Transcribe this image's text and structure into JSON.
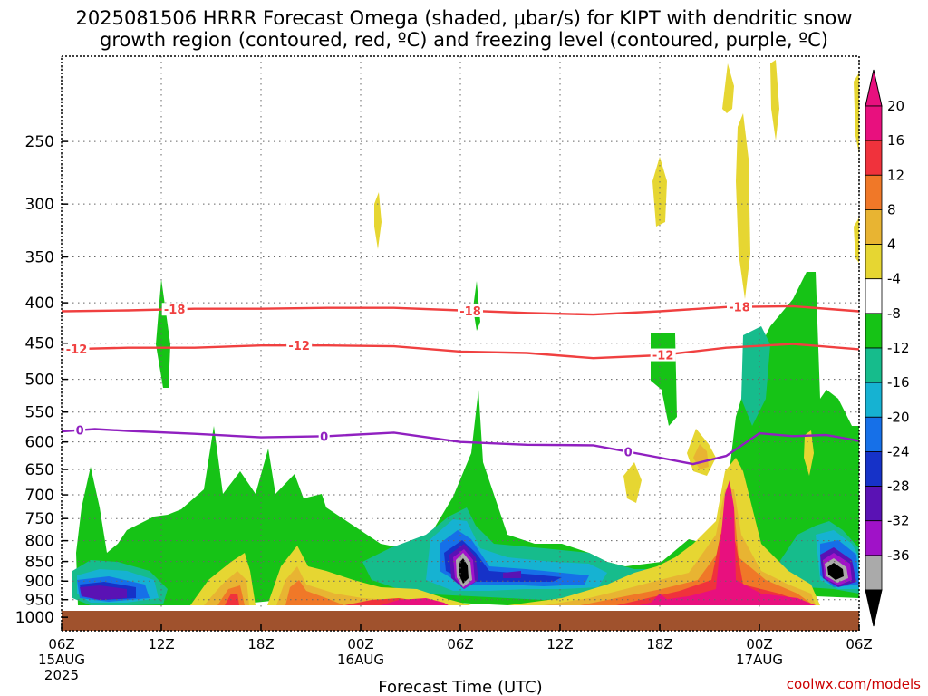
{
  "chart_data": {
    "type": "heatmap",
    "title": "2025081506 HRRR Forecast Omega (shaded, μbar/s) for KIPT with dendritic snow growth region (contoured, red, ºC) and freezing level (contoured, purple, ºC)",
    "title_lines": [
      "2025081506 HRRR Forecast Omega (shaded, μbar/s) for KIPT with dendritic snow",
      "growth region (contoured, red, ºC) and freezing level (contoured, purple, ºC)"
    ],
    "xlabel": "Forecast Time (UTC)",
    "ylabel": "",
    "y_scale": "log-pressure",
    "ylim": [
      1040,
      195
    ],
    "xlim_hours": [
      0,
      48
    ],
    "grid": true,
    "y_ticks": [
      "250",
      "300",
      "350",
      "400",
      "450",
      "500",
      "550",
      "600",
      "650",
      "700",
      "750",
      "800",
      "850",
      "900",
      "950",
      "1000"
    ],
    "x_ticks": [
      {
        "hour": 0,
        "label": "06Z",
        "date": "15AUG",
        "year": "2025"
      },
      {
        "hour": 6,
        "label": "12Z"
      },
      {
        "hour": 12,
        "label": "18Z"
      },
      {
        "hour": 18,
        "label": "00Z",
        "date": "16AUG"
      },
      {
        "hour": 24,
        "label": "06Z"
      },
      {
        "hour": 30,
        "label": "12Z"
      },
      {
        "hour": 36,
        "label": "18Z"
      },
      {
        "hour": 42,
        "label": "00Z",
        "date": "17AUG"
      },
      {
        "hour": 48,
        "label": "06Z"
      }
    ],
    "colorbar": {
      "labels": [
        "20",
        "16",
        "12",
        "8",
        "4",
        "-4",
        "-8",
        "-12",
        "-16",
        "-20",
        "-24",
        "-28",
        "-32",
        "-36"
      ],
      "colors": [
        "#e8107e",
        "#f0323c",
        "#f07828",
        "#e8b432",
        "#e6d632",
        "#ffffff",
        "#16c316",
        "#16bc8c",
        "#16b2d2",
        "#1670e8",
        "#1632c8",
        "#5a12b4",
        "#a012c8",
        "#aaaaaa"
      ],
      "top_arrow_color": "#e8107e",
      "bottom_arrow_color": "#000000"
    },
    "series": [
      {
        "name": "-18",
        "color": "#f04040",
        "x": [
          0,
          4,
          8,
          12,
          16,
          20,
          24,
          28,
          32,
          36,
          40,
          44,
          48
        ],
        "y": [
          410,
          409,
          407,
          407,
          406,
          406,
          409,
          412,
          414,
          410,
          405,
          404,
          410
        ]
      },
      {
        "name": "-12",
        "color": "#f04040",
        "x": [
          0,
          4,
          8,
          12,
          16,
          20,
          24,
          28,
          32,
          36,
          40,
          44,
          48
        ],
        "y": [
          458,
          456,
          456,
          453,
          453,
          454,
          461,
          463,
          470,
          466,
          456,
          451,
          458
        ]
      },
      {
        "name": "0",
        "color": "#9020c0",
        "x": [
          0,
          2,
          4,
          8,
          12,
          16,
          20,
          24,
          28,
          32,
          36,
          38,
          40,
          42,
          44,
          46,
          48
        ],
        "y": [
          582,
          578,
          581,
          586,
          592,
          590,
          584,
          600,
          605,
          606,
          628,
          640,
          625,
          585,
          590,
          588,
          598
        ]
      }
    ],
    "series_labels": [
      {
        "series": "-18",
        "text": "-18",
        "hours": [
          6.8,
          24.6,
          40.8
        ]
      },
      {
        "series": "-12",
        "text": "-12",
        "hours": [
          0.9,
          14.3,
          36.2
        ]
      },
      {
        "series": "0",
        "text": "0",
        "hours": [
          1.1,
          15.8,
          34.1
        ]
      }
    ],
    "omega_features": [
      {
        "value": -8,
        "hour": 4.2,
        "p": 760,
        "note": "green rising area 06Z-12Z"
      },
      {
        "value": -28,
        "hour": 1.5,
        "p": 947,
        "note": "violet core near 950 hPa"
      },
      {
        "value": -36,
        "hour": 23.9,
        "p": 890,
        "note": "strongest rising core near 06Z 16AUG"
      },
      {
        "value": -36,
        "hour": 46.8,
        "p": 890,
        "note": "strong rising core near 04Z 17AUG"
      },
      {
        "value": 20,
        "hour": 40.5,
        "p": 780,
        "note": "sinking plume near 21Z 16AUG"
      },
      {
        "value": 20,
        "hour": 21.5,
        "p": 985,
        "note": "sinking near surface 03Z 16AUG"
      },
      {
        "value": 8,
        "hour": 16.8,
        "p": 310,
        "note": "weak upper-level sinking"
      },
      {
        "value": 8,
        "hour": 41.0,
        "p": 300,
        "note": "upper-level sinking column"
      }
    ]
  },
  "terrain_color": "#a0522d",
  "credit": "coolwx.com/models"
}
